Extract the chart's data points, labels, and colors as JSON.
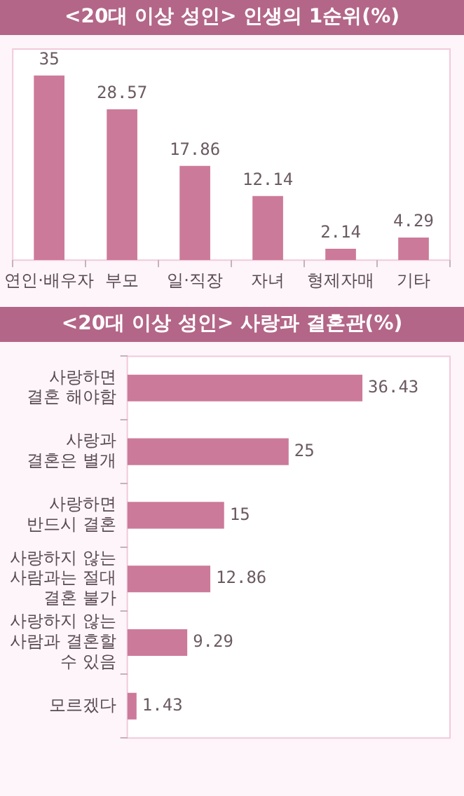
{
  "chart_data": [
    {
      "type": "bar",
      "title": "<20대 이상 성인> 인생의 1순위(%)",
      "categories": [
        "연인·배우자",
        "부모",
        "일·직장",
        "자녀",
        "형제자매",
        "기타"
      ],
      "values": [
        35,
        28.57,
        17.86,
        12.14,
        2.14,
        4.29
      ],
      "color": "#cc7a99",
      "data_labels": true,
      "grid": false,
      "legend": false
    },
    {
      "type": "bar",
      "orientation": "horizontal",
      "title": "<20대 이상 성인> 사랑과 결혼관(%)",
      "categories": [
        "사랑하면\n결혼 해야함",
        "사랑과\n결혼은 별개",
        "사랑하면\n반드시 결혼",
        "사랑하지 않는\n사람과는 절대\n결혼 불가",
        "사랑하지 않는\n사람과 결혼할\n수 있음",
        "모르겠다"
      ],
      "values": [
        36.43,
        25,
        15,
        12.86,
        9.29,
        1.43
      ],
      "color": "#cc7a99",
      "data_labels": true,
      "grid": false,
      "legend": false
    }
  ]
}
